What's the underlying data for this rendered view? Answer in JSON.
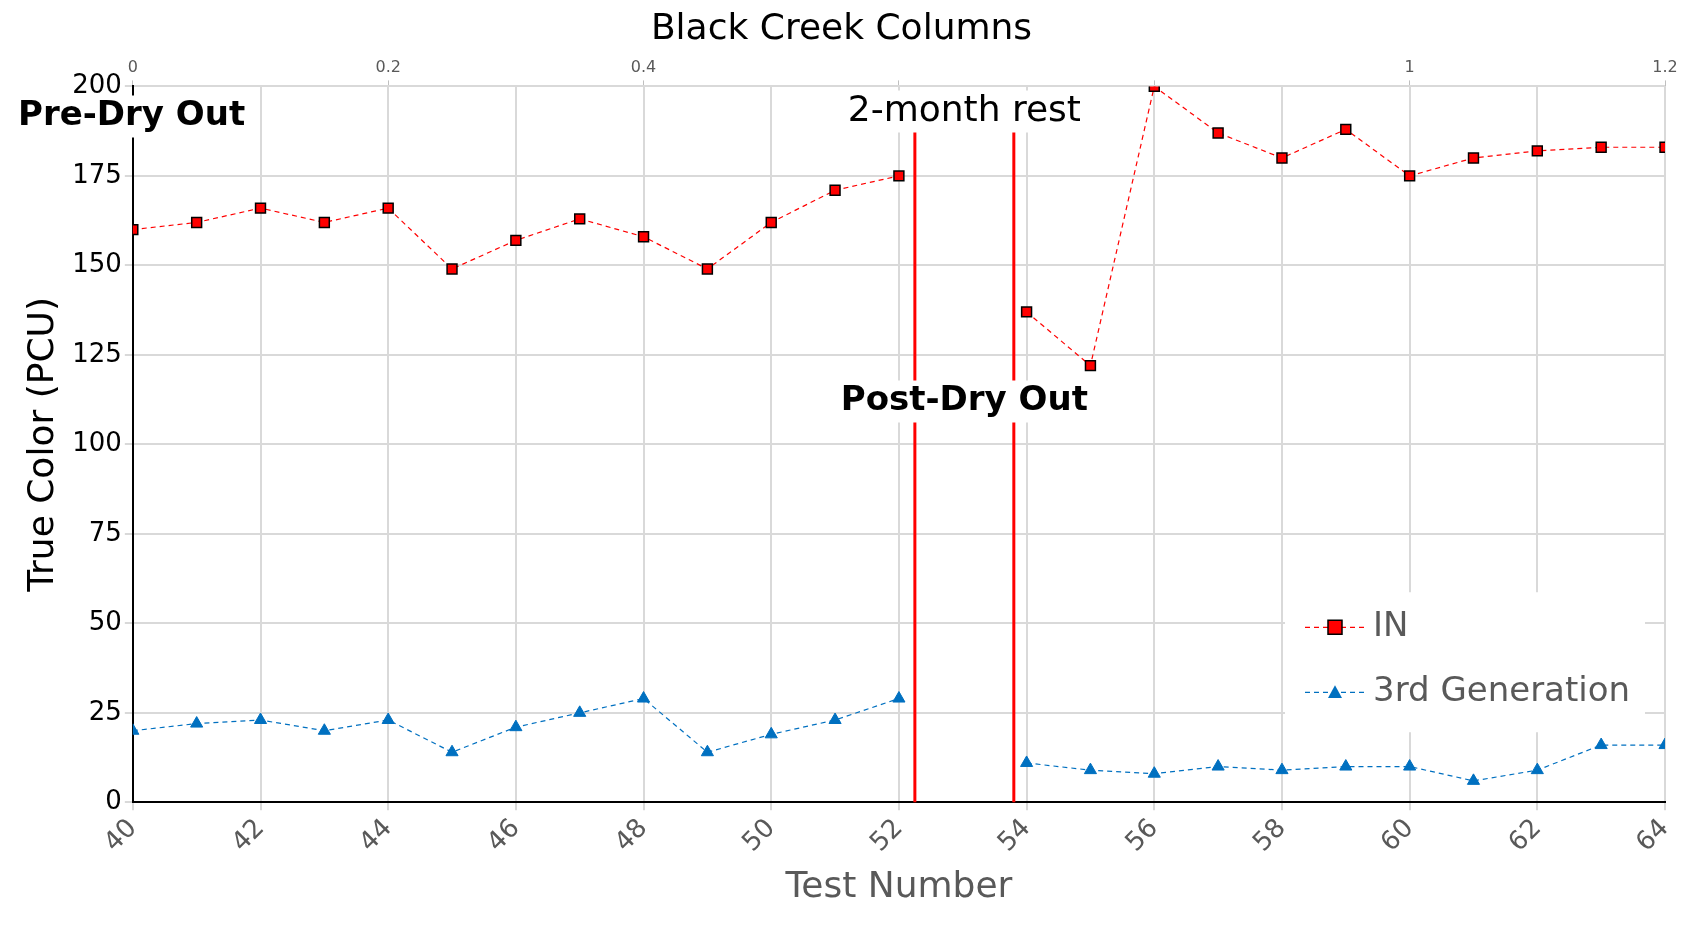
{
  "chart_data": {
    "type": "line",
    "title": "Black Creek Columns",
    "xlabel": "Test Number",
    "ylabel": "True Color (PCU)",
    "x": [
      40,
      41,
      42,
      43,
      44,
      45,
      46,
      47,
      48,
      49,
      50,
      51,
      52,
      53,
      54,
      55,
      56,
      57,
      58,
      59,
      60,
      61,
      62,
      63,
      64
    ],
    "series": [
      {
        "name": "IN",
        "color": "#ff0000",
        "marker": "square",
        "line_style": "dashed",
        "values": [
          160,
          162,
          166,
          162,
          166,
          149,
          157,
          163,
          158,
          149,
          162,
          171,
          175,
          null,
          137,
          122,
          200,
          187,
          180,
          188,
          175,
          180,
          182,
          183,
          183
        ]
      },
      {
        "name": "3rd Generation",
        "color": "#0070c0",
        "marker": "triangle",
        "line_style": "dashed",
        "values": [
          20,
          22,
          23,
          20,
          23,
          14,
          21,
          25,
          29,
          14,
          19,
          23,
          29,
          null,
          11,
          9,
          8,
          10,
          9,
          10,
          10,
          6,
          9,
          16,
          16
        ]
      }
    ],
    "xlim": [
      40,
      64
    ],
    "xticks": [
      40,
      42,
      44,
      46,
      48,
      50,
      52,
      54,
      56,
      58,
      60,
      62,
      64
    ],
    "ylim": [
      0,
      200
    ],
    "yticks": [
      0,
      25,
      50,
      75,
      100,
      125,
      150,
      175,
      200
    ],
    "x2lim": [
      0,
      1.2
    ],
    "x2ticks": [
      0,
      0.2,
      0.4,
      {
        "value": 0.6,
        "label": null
      },
      {
        "value": 0.8,
        "label": null
      },
      1,
      1.2
    ],
    "ref_lines": [
      {
        "axis": "x",
        "value": 52.25,
        "color": "#ff0000"
      },
      {
        "axis": "x",
        "value": 53.8,
        "color": "#ff0000"
      }
    ],
    "annotations": [
      "Pre-Dry Out",
      "2-month rest",
      "Post-Dry Out"
    ],
    "grid": true,
    "legend": "bottom right"
  }
}
